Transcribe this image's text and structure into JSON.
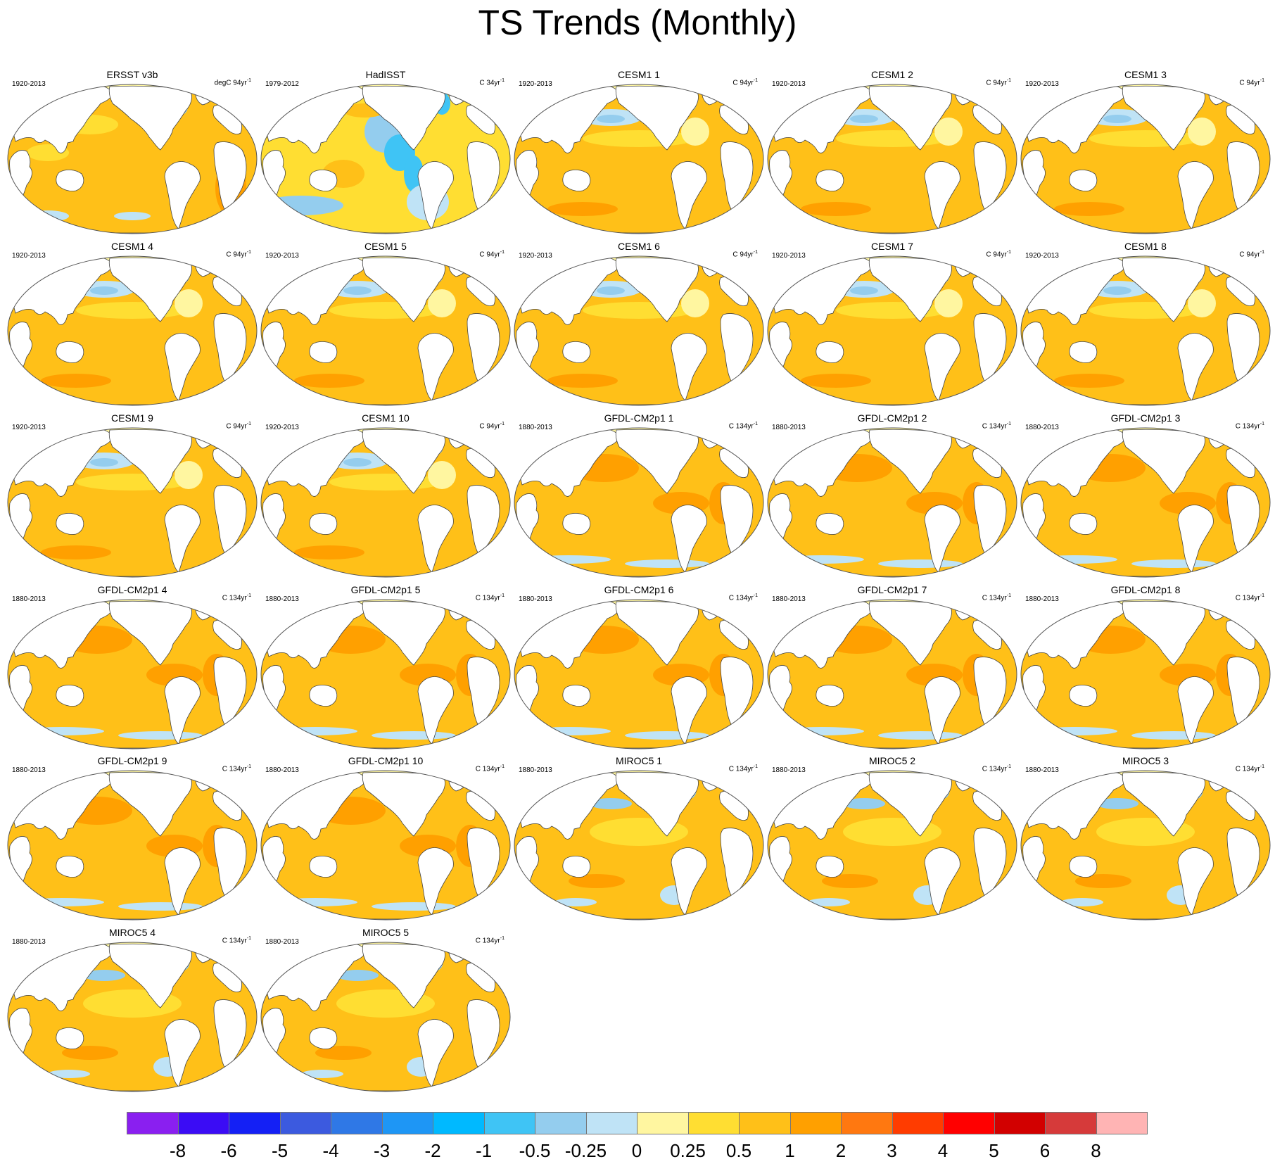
{
  "title": "TS Trends (Monthly)",
  "panels": [
    {
      "title": "ERSST v3b",
      "period": "1920-2013",
      "units": "degC 94yr",
      "units_sup": "-1",
      "style": "obs"
    },
    {
      "title": "HadISST",
      "period": "1979-2012",
      "units": "C 34yr",
      "units_sup": "-1",
      "style": "hadisst"
    },
    {
      "title": "CESM1 1",
      "period": "1920-2013",
      "units": "C 94yr",
      "units_sup": "-1",
      "style": "cesm"
    },
    {
      "title": "CESM1 2",
      "period": "1920-2013",
      "units": "C 94yr",
      "units_sup": "-1",
      "style": "cesm"
    },
    {
      "title": "CESM1 3",
      "period": "1920-2013",
      "units": "C 94yr",
      "units_sup": "-1",
      "style": "cesm"
    },
    {
      "title": "CESM1 4",
      "period": "1920-2013",
      "units": "C 94yr",
      "units_sup": "-1",
      "style": "cesm"
    },
    {
      "title": "CESM1 5",
      "period": "1920-2013",
      "units": "C 94yr",
      "units_sup": "-1",
      "style": "cesm"
    },
    {
      "title": "CESM1 6",
      "period": "1920-2013",
      "units": "C 94yr",
      "units_sup": "-1",
      "style": "cesm"
    },
    {
      "title": "CESM1 7",
      "period": "1920-2013",
      "units": "C 94yr",
      "units_sup": "-1",
      "style": "cesm"
    },
    {
      "title": "CESM1 8",
      "period": "1920-2013",
      "units": "C 94yr",
      "units_sup": "-1",
      "style": "cesm"
    },
    {
      "title": "CESM1 9",
      "period": "1920-2013",
      "units": "C 94yr",
      "units_sup": "-1",
      "style": "cesm"
    },
    {
      "title": "CESM1 10",
      "period": "1920-2013",
      "units": "C 94yr",
      "units_sup": "-1",
      "style": "cesm"
    },
    {
      "title": "GFDL-CM2p1 1",
      "period": "1880-2013",
      "units": "C 134yr",
      "units_sup": "-1",
      "style": "gfdl"
    },
    {
      "title": "GFDL-CM2p1 2",
      "period": "1880-2013",
      "units": "C 134yr",
      "units_sup": "-1",
      "style": "gfdl"
    },
    {
      "title": "GFDL-CM2p1 3",
      "period": "1880-2013",
      "units": "C 134yr",
      "units_sup": "-1",
      "style": "gfdl"
    },
    {
      "title": "GFDL-CM2p1 4",
      "period": "1880-2013",
      "units": "C 134yr",
      "units_sup": "-1",
      "style": "gfdl"
    },
    {
      "title": "GFDL-CM2p1 5",
      "period": "1880-2013",
      "units": "C 134yr",
      "units_sup": "-1",
      "style": "gfdl"
    },
    {
      "title": "GFDL-CM2p1 6",
      "period": "1880-2013",
      "units": "C 134yr",
      "units_sup": "-1",
      "style": "gfdl"
    },
    {
      "title": "GFDL-CM2p1 7",
      "period": "1880-2013",
      "units": "C 134yr",
      "units_sup": "-1",
      "style": "gfdl"
    },
    {
      "title": "GFDL-CM2p1 8",
      "period": "1880-2013",
      "units": "C 134yr",
      "units_sup": "-1",
      "style": "gfdl"
    },
    {
      "title": "GFDL-CM2p1 9",
      "period": "1880-2013",
      "units": "C 134yr",
      "units_sup": "-1",
      "style": "gfdl"
    },
    {
      "title": "GFDL-CM2p1 10",
      "period": "1880-2013",
      "units": "C 134yr",
      "units_sup": "-1",
      "style": "gfdl"
    },
    {
      "title": "MIROC5 1",
      "period": "1880-2013",
      "units": "C 134yr",
      "units_sup": "-1",
      "style": "miroc"
    },
    {
      "title": "MIROC5 2",
      "period": "1880-2013",
      "units": "C 134yr",
      "units_sup": "-1",
      "style": "miroc"
    },
    {
      "title": "MIROC5 3",
      "period": "1880-2013",
      "units": "C 134yr",
      "units_sup": "-1",
      "style": "miroc"
    },
    {
      "title": "MIROC5 4",
      "period": "1880-2013",
      "units": "C 134yr",
      "units_sup": "-1",
      "style": "miroc"
    },
    {
      "title": "MIROC5 5",
      "period": "1880-2013",
      "units": "C 134yr",
      "units_sup": "-1",
      "style": "miroc"
    }
  ],
  "colorbar": {
    "colors": [
      "#8a1ff0",
      "#3b0cf5",
      "#1420f5",
      "#3c5adf",
      "#2f78e6",
      "#1e96f5",
      "#00b9ff",
      "#3fc4f5",
      "#94cdee",
      "#bfe3f6",
      "#fff6a0",
      "#ffde32",
      "#ffc018",
      "#ffa000",
      "#ff7810",
      "#ff3c00",
      "#ff0000",
      "#d20000",
      "#d63a3a",
      "#ffb4b4"
    ],
    "labels": [
      "-8",
      "-6",
      "-5",
      "-4",
      "-3",
      "-2",
      "-1",
      "-0.5",
      "-0.25",
      "0",
      "0.25",
      "0.5",
      "1",
      "2",
      "3",
      "4",
      "5",
      "6",
      "8"
    ]
  },
  "map_colors": {
    "ocean_warm": "#ffc018",
    "ocean_mid": "#ffde32",
    "ocean_light": "#fff6a0",
    "ocean_hot": "#ffa000",
    "cool_light": "#bfe3f6",
    "cool": "#94cdee",
    "cold": "#3fc4f5",
    "colder": "#2f78e6",
    "hot_spot": "#ff3c00",
    "land": "#ffffff",
    "coast": "#444444"
  }
}
